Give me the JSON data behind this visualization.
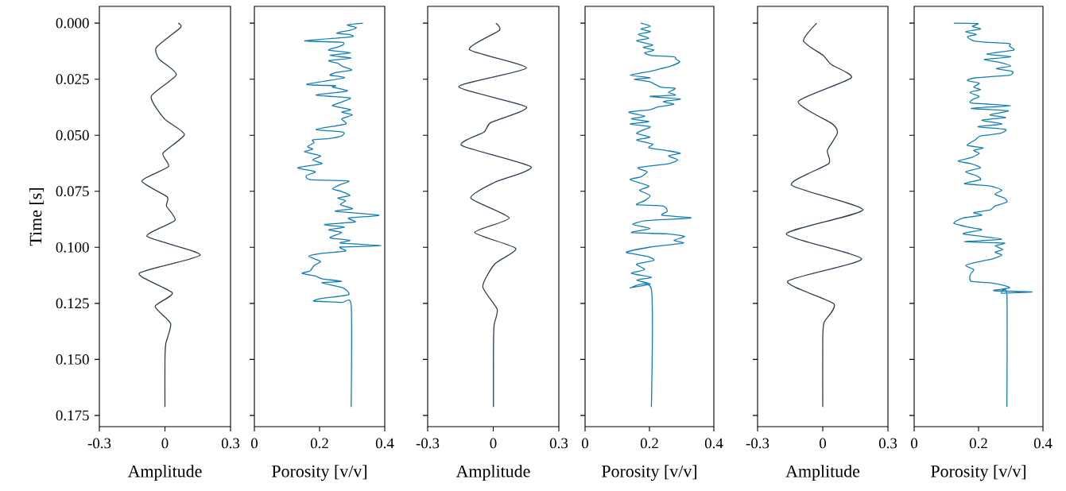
{
  "chart_data": [
    {
      "type": "line",
      "xlabel": "Amplitude",
      "ylabel": "Time [s]",
      "xlim": [
        -0.3,
        0.3
      ],
      "xticks": [
        {
          "value": -0.3,
          "label": "-0.3"
        },
        {
          "value": 0,
          "label": "0"
        },
        {
          "value": 0.3,
          "label": "0.3"
        }
      ],
      "ylim": [
        0.18,
        -0.0075
      ],
      "yticks": [
        {
          "value": 0,
          "label": "0.000"
        },
        {
          "value": 0.025,
          "label": "0.025"
        },
        {
          "value": 0.05,
          "label": "0.050"
        },
        {
          "value": 0.075,
          "label": "0.075"
        },
        {
          "value": 0.1,
          "label": "0.100"
        },
        {
          "value": 0.125,
          "label": "0.125"
        },
        {
          "value": 0.15,
          "label": "0.150"
        },
        {
          "value": 0.175,
          "label": "0.175"
        }
      ],
      "series": [
        {
          "color": "#2b3d53",
          "x": [
            0.061,
            0.071,
            -0.039,
            -0.027,
            0.052,
            -0.063,
            -0.002,
            0.089,
            -0.009,
            0.016,
            -0.106,
            0.01,
            0.007,
            0.046,
            -0.082,
            0.162,
            -0.118,
            0.034,
            -0.045,
            0.026,
            0.004,
            0,
            0
          ],
          "values": [
            0,
            0.002,
            0.0108,
            0.016,
            0.023,
            0.0327,
            0.0427,
            0.0497,
            0.058,
            0.064,
            0.0704,
            0.0775,
            0.0816,
            0.088,
            0.0951,
            0.1034,
            0.1116,
            0.1203,
            0.1264,
            0.134,
            0.1429,
            0.15,
            0.1712
          ]
        }
      ]
    },
    {
      "type": "line",
      "xlabel": "Porosity [v/v]",
      "xlim": [
        0,
        0.4
      ],
      "xticks": [
        0,
        0.2,
        0.4
      ],
      "ylim": [
        0.18,
        -0.0075
      ],
      "yticks": [
        {
          "value": 0,
          "label": null
        },
        {
          "value": 0.025,
          "label": null
        },
        {
          "value": 0.05,
          "label": null
        },
        {
          "value": 0.075,
          "label": null
        },
        {
          "value": 0.1,
          "label": null
        },
        {
          "value": 0.125,
          "label": null
        },
        {
          "value": 0.15,
          "label": null
        },
        {
          "value": 0.175,
          "label": null
        }
      ],
      "tick_labels": "x",
      "series": [
        {
          "color": "#137eb3",
          "x": [
            0.333,
            0.285,
            0.313,
            0.293,
            0.252,
            0.295,
            0.297,
            0.154,
            0.268,
            0.272,
            0.252,
            0.228,
            0.295,
            0.232,
            0.297,
            0.228,
            0.256,
            0.268,
            0.299,
            0.252,
            0.232,
            0.276,
            0.16,
            0.248,
            0.24,
            0.285,
            0.189,
            0.293,
            0.272,
            0.24,
            0.295,
            0.268,
            0.301,
            0.268,
            0.28,
            0.189,
            0.272,
            0.268,
            0.228,
            0.179,
            0.183,
            0.163,
            0.179,
            0.154,
            0.203,
            0.179,
            0.207,
            0.133,
            0.187,
            0.159,
            0.171,
            0.289,
            0.26,
            0.24,
            0.268,
            0.293,
            0.256,
            0.28,
            0.264,
            0.301,
            0.248,
            0.382,
            0.289,
            0.309,
            0.215,
            0.276,
            0.228,
            0.268,
            0.232,
            0.293,
            0.264,
            0.39,
            0.264,
            0.28,
            0.203,
            0.167,
            0.203,
            0.183,
            0.171,
            0.146,
            0.187,
            0.207,
            0.268,
            0.207,
            0.272,
            0.289,
            0.203,
            0.183,
            0.268,
            0.297,
            0.297
          ],
          "values": [
            0,
            0.0008,
            0.002,
            0.0032,
            0.0044,
            0.0052,
            0.0061,
            0.0079,
            0.0085,
            0.0097,
            0.0108,
            0.012,
            0.0132,
            0.0144,
            0.0156,
            0.0167,
            0.0179,
            0.0191,
            0.0209,
            0.022,
            0.0232,
            0.0244,
            0.0273,
            0.0279,
            0.0285,
            0.0303,
            0.0321,
            0.0333,
            0.035,
            0.0368,
            0.0386,
            0.0397,
            0.0409,
            0.0427,
            0.045,
            0.0474,
            0.0486,
            0.0503,
            0.0515,
            0.0521,
            0.0533,
            0.0551,
            0.0562,
            0.0574,
            0.0592,
            0.061,
            0.0627,
            0.0645,
            0.0663,
            0.068,
            0.0698,
            0.0704,
            0.0722,
            0.0739,
            0.0751,
            0.0769,
            0.078,
            0.0792,
            0.081,
            0.0828,
            0.0839,
            0.0857,
            0.0869,
            0.0887,
            0.0898,
            0.091,
            0.0922,
            0.0934,
            0.0957,
            0.0969,
            0.0981,
            0.0993,
            0.0999,
            0.1016,
            0.1028,
            0.104,
            0.1063,
            0.1081,
            0.1105,
            0.1116,
            0.1128,
            0.114,
            0.1152,
            0.1158,
            0.1181,
            0.1211,
            0.1229,
            0.124,
            0.1246,
            0.1258,
            0.1712
          ]
        }
      ]
    },
    {
      "type": "line",
      "xlabel": "Amplitude",
      "xlim": [
        -0.3,
        0.3
      ],
      "xticks": [
        {
          "value": -0.3,
          "label": "-0.3"
        },
        {
          "value": 0,
          "label": "0"
        },
        {
          "value": 0.3,
          "label": "0.3"
        }
      ],
      "ylim": [
        0.18,
        -0.0075
      ],
      "yticks": [
        {
          "value": 0,
          "label": null
        },
        {
          "value": 0.025,
          "label": null
        },
        {
          "value": 0.05,
          "label": null
        },
        {
          "value": 0.075,
          "label": null
        },
        {
          "value": 0.1,
          "label": null
        },
        {
          "value": 0.125,
          "label": null
        },
        {
          "value": 0.15,
          "label": null
        },
        {
          "value": 0.175,
          "label": null
        }
      ],
      "tick_labels": "x",
      "series": [
        {
          "color": "#2b3d53",
          "x": [
            0.012,
            0.028,
            -0.109,
            0.152,
            -0.158,
            0.152,
            -0.012,
            -0.042,
            -0.145,
            0.173,
            0.006,
            -0.103,
            0.073,
            -0.085,
            0.103,
            0.006,
            -0.048,
            0.018,
            0.004,
            0.001,
            0.001
          ],
          "values": [
            0,
            0.0032,
            0.0118,
            0.02,
            0.0283,
            0.0374,
            0.0444,
            0.0486,
            0.0545,
            0.0641,
            0.071,
            0.078,
            0.0869,
            0.0934,
            0.1005,
            0.1075,
            0.1175,
            0.1276,
            0.1346,
            0.1441,
            0.1712
          ]
        }
      ]
    },
    {
      "type": "line",
      "xlabel": "Porosity [v/v]",
      "xlim": [
        0,
        0.4
      ],
      "xticks": [
        0,
        0.2,
        0.4
      ],
      "ylim": [
        0.18,
        -0.0075
      ],
      "yticks": [
        {
          "value": 0,
          "label": null
        },
        {
          "value": 0.025,
          "label": null
        },
        {
          "value": 0.05,
          "label": null
        },
        {
          "value": 0.075,
          "label": null
        },
        {
          "value": 0.1,
          "label": null
        },
        {
          "value": 0.125,
          "label": null
        },
        {
          "value": 0.15,
          "label": null
        },
        {
          "value": 0.175,
          "label": null
        }
      ],
      "tick_labels": "x",
      "series": [
        {
          "color": "#137eb3",
          "x": [
            0.173,
            0.203,
            0.173,
            0.203,
            0.165,
            0.198,
            0.16,
            0.21,
            0.181,
            0.214,
            0.185,
            0.206,
            0.276,
            0.284,
            0.294,
            0.267,
            0.235,
            0.202,
            0.14,
            0.202,
            0.152,
            0.202,
            0.235,
            0.28,
            0.259,
            0.28,
            0.202,
            0.296,
            0.243,
            0.276,
            0.226,
            0.202,
            0.136,
            0.185,
            0.144,
            0.198,
            0.14,
            0.202,
            0.185,
            0.16,
            0.202,
            0.16,
            0.21,
            0.198,
            0.251,
            0.296,
            0.259,
            0.288,
            0.259,
            0.165,
            0.193,
            0.173,
            0.14,
            0.198,
            0.169,
            0.202,
            0.185,
            0.16,
            0.243,
            0.255,
            0.239,
            0.329,
            0.189,
            0.148,
            0.202,
            0.144,
            0.255,
            0.309,
            0.276,
            0.305,
            0.202,
            0.128,
            0.193,
            0.214,
            0.16,
            0.185,
            0.144,
            0.206,
            0.16,
            0.202,
            0.14,
            0.206,
            0.206
          ],
          "values": [
            0,
            0.0014,
            0.0026,
            0.0038,
            0.005,
            0.0067,
            0.0079,
            0.0097,
            0.0108,
            0.012,
            0.0132,
            0.0144,
            0.015,
            0.0162,
            0.0173,
            0.0191,
            0.0203,
            0.0215,
            0.0232,
            0.0244,
            0.025,
            0.0262,
            0.0285,
            0.0291,
            0.0309,
            0.0321,
            0.0327,
            0.0338,
            0.035,
            0.0362,
            0.0374,
            0.0386,
            0.0397,
            0.0415,
            0.0427,
            0.0439,
            0.045,
            0.0462,
            0.0474,
            0.0492,
            0.0509,
            0.0521,
            0.0539,
            0.0556,
            0.0568,
            0.058,
            0.0592,
            0.061,
            0.0627,
            0.0645,
            0.0663,
            0.0686,
            0.0698,
            0.0727,
            0.0745,
            0.0769,
            0.0792,
            0.081,
            0.0816,
            0.0839,
            0.0857,
            0.0869,
            0.0881,
            0.0898,
            0.0916,
            0.0934,
            0.094,
            0.0951,
            0.0969,
            0.0981,
            0.0999,
            0.1022,
            0.104,
            0.1058,
            0.1075,
            0.1099,
            0.1116,
            0.1134,
            0.1146,
            0.1164,
            0.1181,
            0.1187,
            0.1712
          ]
        }
      ]
    },
    {
      "type": "line",
      "xlabel": "Amplitude",
      "xlim": [
        -0.3,
        0.3
      ],
      "xticks": [
        {
          "value": -0.3,
          "label": "-0.3"
        },
        {
          "value": 0,
          "label": "0"
        },
        {
          "value": 0.3,
          "label": "0.3"
        }
      ],
      "ylim": [
        0.18,
        -0.0075
      ],
      "yticks": [
        {
          "value": 0,
          "label": null
        },
        {
          "value": 0.025,
          "label": null
        },
        {
          "value": 0.05,
          "label": null
        },
        {
          "value": 0.075,
          "label": null
        },
        {
          "value": 0.1,
          "label": null
        },
        {
          "value": 0.125,
          "label": null
        },
        {
          "value": 0.15,
          "label": null
        },
        {
          "value": 0.175,
          "label": null
        }
      ],
      "tick_labels": "x",
      "series": [
        {
          "color": "#2b3d53",
          "x": [
            -0.028,
            -0.089,
            0.002,
            0.039,
            0.131,
            -0.113,
            0.045,
            0.067,
            0.021,
            0.027,
            -0.144,
            0.185,
            -0.168,
            0.179,
            -0.162,
            0.051,
            0.006,
            0,
            0
          ],
          "values": [
            0,
            0.0079,
            0.0144,
            0.0185,
            0.0244,
            0.035,
            0.045,
            0.0492,
            0.0568,
            0.0627,
            0.0722,
            0.0833,
            0.094,
            0.1052,
            0.1152,
            0.1252,
            0.1335,
            0.1405,
            0.1712
          ]
        }
      ]
    },
    {
      "type": "line",
      "xlabel": "Porosity [v/v]",
      "xlim": [
        0,
        0.4
      ],
      "xticks": [
        0,
        0.2,
        0.4
      ],
      "ylim": [
        0.18,
        -0.0075
      ],
      "yticks": [
        {
          "value": 0,
          "label": null
        },
        {
          "value": 0.025,
          "label": null
        },
        {
          "value": 0.05,
          "label": null
        },
        {
          "value": 0.075,
          "label": null
        },
        {
          "value": 0.1,
          "label": null
        },
        {
          "value": 0.125,
          "label": null
        },
        {
          "value": 0.15,
          "label": null
        },
        {
          "value": 0.175,
          "label": null
        }
      ],
      "tick_labels": "x",
      "series": [
        {
          "color": "#137eb3",
          "x": [
            0.123,
            0.198,
            0.181,
            0.206,
            0.16,
            0.193,
            0.165,
            0.185,
            0.222,
            0.296,
            0.296,
            0.309,
            0.226,
            0.3,
            0.218,
            0.259,
            0.3,
            0.255,
            0.305,
            0.296,
            0.189,
            0.165,
            0.202,
            0.185,
            0.206,
            0.173,
            0.202,
            0.185,
            0.177,
            0.3,
            0.177,
            0.292,
            0.235,
            0.284,
            0.21,
            0.272,
            0.198,
            0.284,
            0.267,
            0.206,
            0.189,
            0.165,
            0.214,
            0.185,
            0.202,
            0.181,
            0.136,
            0.177,
            0.206,
            0.16,
            0.193,
            0.206,
            0.156,
            0.239,
            0.272,
            0.251,
            0.28,
            0.288,
            0.251,
            0.235,
            0.185,
            0.21,
            0.152,
            0.123,
            0.169,
            0.21,
            0.152,
            0.272,
            0.156,
            0.28,
            0.251,
            0.276,
            0.251,
            0.272,
            0.243,
            0.185,
            0.16,
            0.185,
            0.177,
            0.173,
            0.177,
            0.235,
            0.28,
            0.296,
            0.247,
            0.366,
            0.272,
            0.288,
            0.288
          ],
          "values": [
            0,
            0.0002,
            0.0014,
            0.0026,
            0.0038,
            0.005,
            0.0061,
            0.0079,
            0.0085,
            0.0091,
            0.0103,
            0.012,
            0.0138,
            0.015,
            0.0162,
            0.0173,
            0.0191,
            0.0203,
            0.0215,
            0.0232,
            0.0244,
            0.0256,
            0.0268,
            0.0285,
            0.0297,
            0.0309,
            0.0327,
            0.0338,
            0.0356,
            0.0368,
            0.038,
            0.0391,
            0.0409,
            0.0421,
            0.0433,
            0.045,
            0.0462,
            0.0474,
            0.0492,
            0.0503,
            0.0521,
            0.0545,
            0.0556,
            0.0568,
            0.058,
            0.0598,
            0.0615,
            0.0627,
            0.0645,
            0.0663,
            0.068,
            0.0698,
            0.0716,
            0.0727,
            0.0745,
            0.0763,
            0.078,
            0.0798,
            0.0816,
            0.0834,
            0.0845,
            0.0857,
            0.0869,
            0.0892,
            0.091,
            0.0922,
            0.094,
            0.0963,
            0.0975,
            0.0981,
            0.0993,
            0.101,
            0.1022,
            0.1034,
            0.1052,
            0.1069,
            0.1081,
            0.1099,
            0.1116,
            0.1128,
            0.1152,
            0.1158,
            0.117,
            0.1181,
            0.1193,
            0.1199,
            0.1205,
            0.1211,
            0.1712
          ]
        }
      ]
    }
  ]
}
